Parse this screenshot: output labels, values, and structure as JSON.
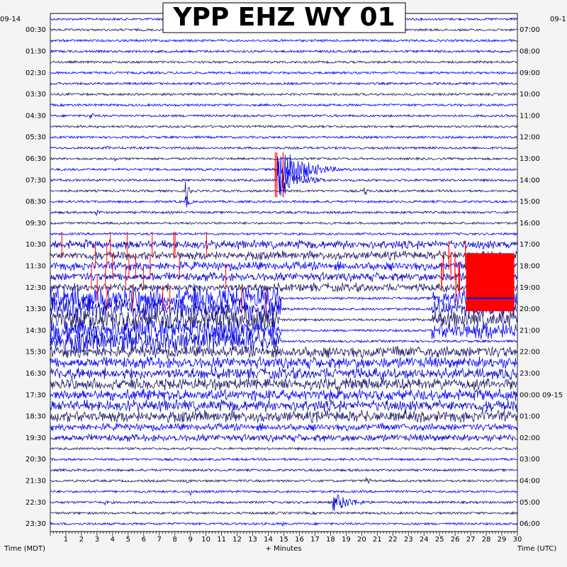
{
  "chart_data": {
    "type": "line",
    "title": "YPP EHZ WY 01",
    "start_date_label": "09-14",
    "right_date_label": "09-1",
    "xlabel": "+ Minutes",
    "ylabel_left": "Time (MDT)",
    "ylabel_right": "Time (UTC)",
    "xlim": [
      0,
      30
    ],
    "x_ticks": [
      1,
      2,
      3,
      4,
      5,
      6,
      7,
      8,
      9,
      10,
      11,
      12,
      13,
      14,
      15,
      16,
      17,
      18,
      19,
      20,
      21,
      22,
      23,
      24,
      25,
      26,
      27,
      28,
      29,
      30
    ],
    "left_times": [
      "00:30",
      "01:30",
      "02:30",
      "03:30",
      "04:30",
      "05:30",
      "06:30",
      "07:30",
      "08:30",
      "09:30",
      "10:30",
      "11:30",
      "12:30",
      "13:30",
      "14:30",
      "15:30",
      "16:30",
      "17:30",
      "18:30",
      "19:30",
      "20:30",
      "21:30",
      "22:30",
      "23:30"
    ],
    "right_times": [
      "07:00",
      "08:00",
      "09:00",
      "10:00",
      "11:00",
      "12:00",
      "13:00",
      "14:00",
      "15:00",
      "16:00",
      "17:00",
      "18:00",
      "19:00",
      "20:00",
      "21:00",
      "22:00",
      "23:00",
      "00:00 09-15",
      "01:00",
      "02:00",
      "03:00",
      "04:00",
      "05:00",
      "06:00"
    ],
    "trace_count": 48,
    "trace_colors": [
      "#0000cc",
      "#1a1a66",
      "#0000ff"
    ],
    "clip_color": "#ff0000",
    "grid": true,
    "events": [
      {
        "trace": 9,
        "minute": 2.6,
        "amp": 6
      },
      {
        "trace": 12,
        "minute": 3.7,
        "amp": 3
      },
      {
        "trace": 14,
        "minute": 14.6,
        "amp": 40,
        "decay": 1.5
      },
      {
        "trace": 15,
        "minute": 14.6,
        "amp": 30,
        "decay": 1.2
      },
      {
        "trace": 13,
        "minute": 4.2,
        "amp": 4
      },
      {
        "trace": 16,
        "minute": 8.7,
        "amp": 14
      },
      {
        "trace": 17,
        "minute": 8.7,
        "amp": 12
      },
      {
        "trace": 16,
        "minute": 20.2,
        "amp": 8
      },
      {
        "trace": 18,
        "minute": 3.0,
        "amp": 5
      },
      {
        "trace": 21,
        "minute": 2.3,
        "amp": 8
      },
      {
        "trace": 24,
        "minute": 6.5,
        "amp": 8
      },
      {
        "trace": 24,
        "minute": 17.5,
        "amp": 6
      },
      {
        "trace": 25,
        "minute": 17.0,
        "amp": 5
      },
      {
        "trace": 43,
        "minute": 8.8,
        "amp": 4
      },
      {
        "trace": 43,
        "minute": 20.3,
        "amp": 7
      },
      {
        "trace": 44,
        "minute": 9.0,
        "amp": 6
      },
      {
        "trace": 45,
        "minute": 18.2,
        "amp": 14,
        "decay": 1.2
      },
      {
        "trace": 45,
        "minute": 3.5,
        "amp": 4
      },
      {
        "trace": 47,
        "minute": 14.9,
        "amp": 4
      }
    ],
    "noisy_segments": [
      {
        "traces": [
          21,
          22,
          23,
          24,
          25
        ],
        "from": 0,
        "to": 30,
        "amp": 6
      },
      {
        "traces": [
          26,
          27,
          28,
          29,
          30
        ],
        "from": 0,
        "to": 14.8,
        "amp": 16
      },
      {
        "traces": [
          26,
          27,
          28,
          29
        ],
        "from": 24.5,
        "to": 30,
        "amp": 12
      },
      {
        "traces": [
          31,
          32,
          33,
          34,
          35,
          36,
          37
        ],
        "from": 0,
        "to": 30,
        "amp": 8
      },
      {
        "traces": [
          38,
          39
        ],
        "from": 0,
        "to": 30,
        "amp": 5
      }
    ],
    "clipped_block": {
      "traces": [
        22,
        23,
        24,
        25,
        26,
        27
      ],
      "from": 26.7,
      "to": 29.8
    }
  }
}
